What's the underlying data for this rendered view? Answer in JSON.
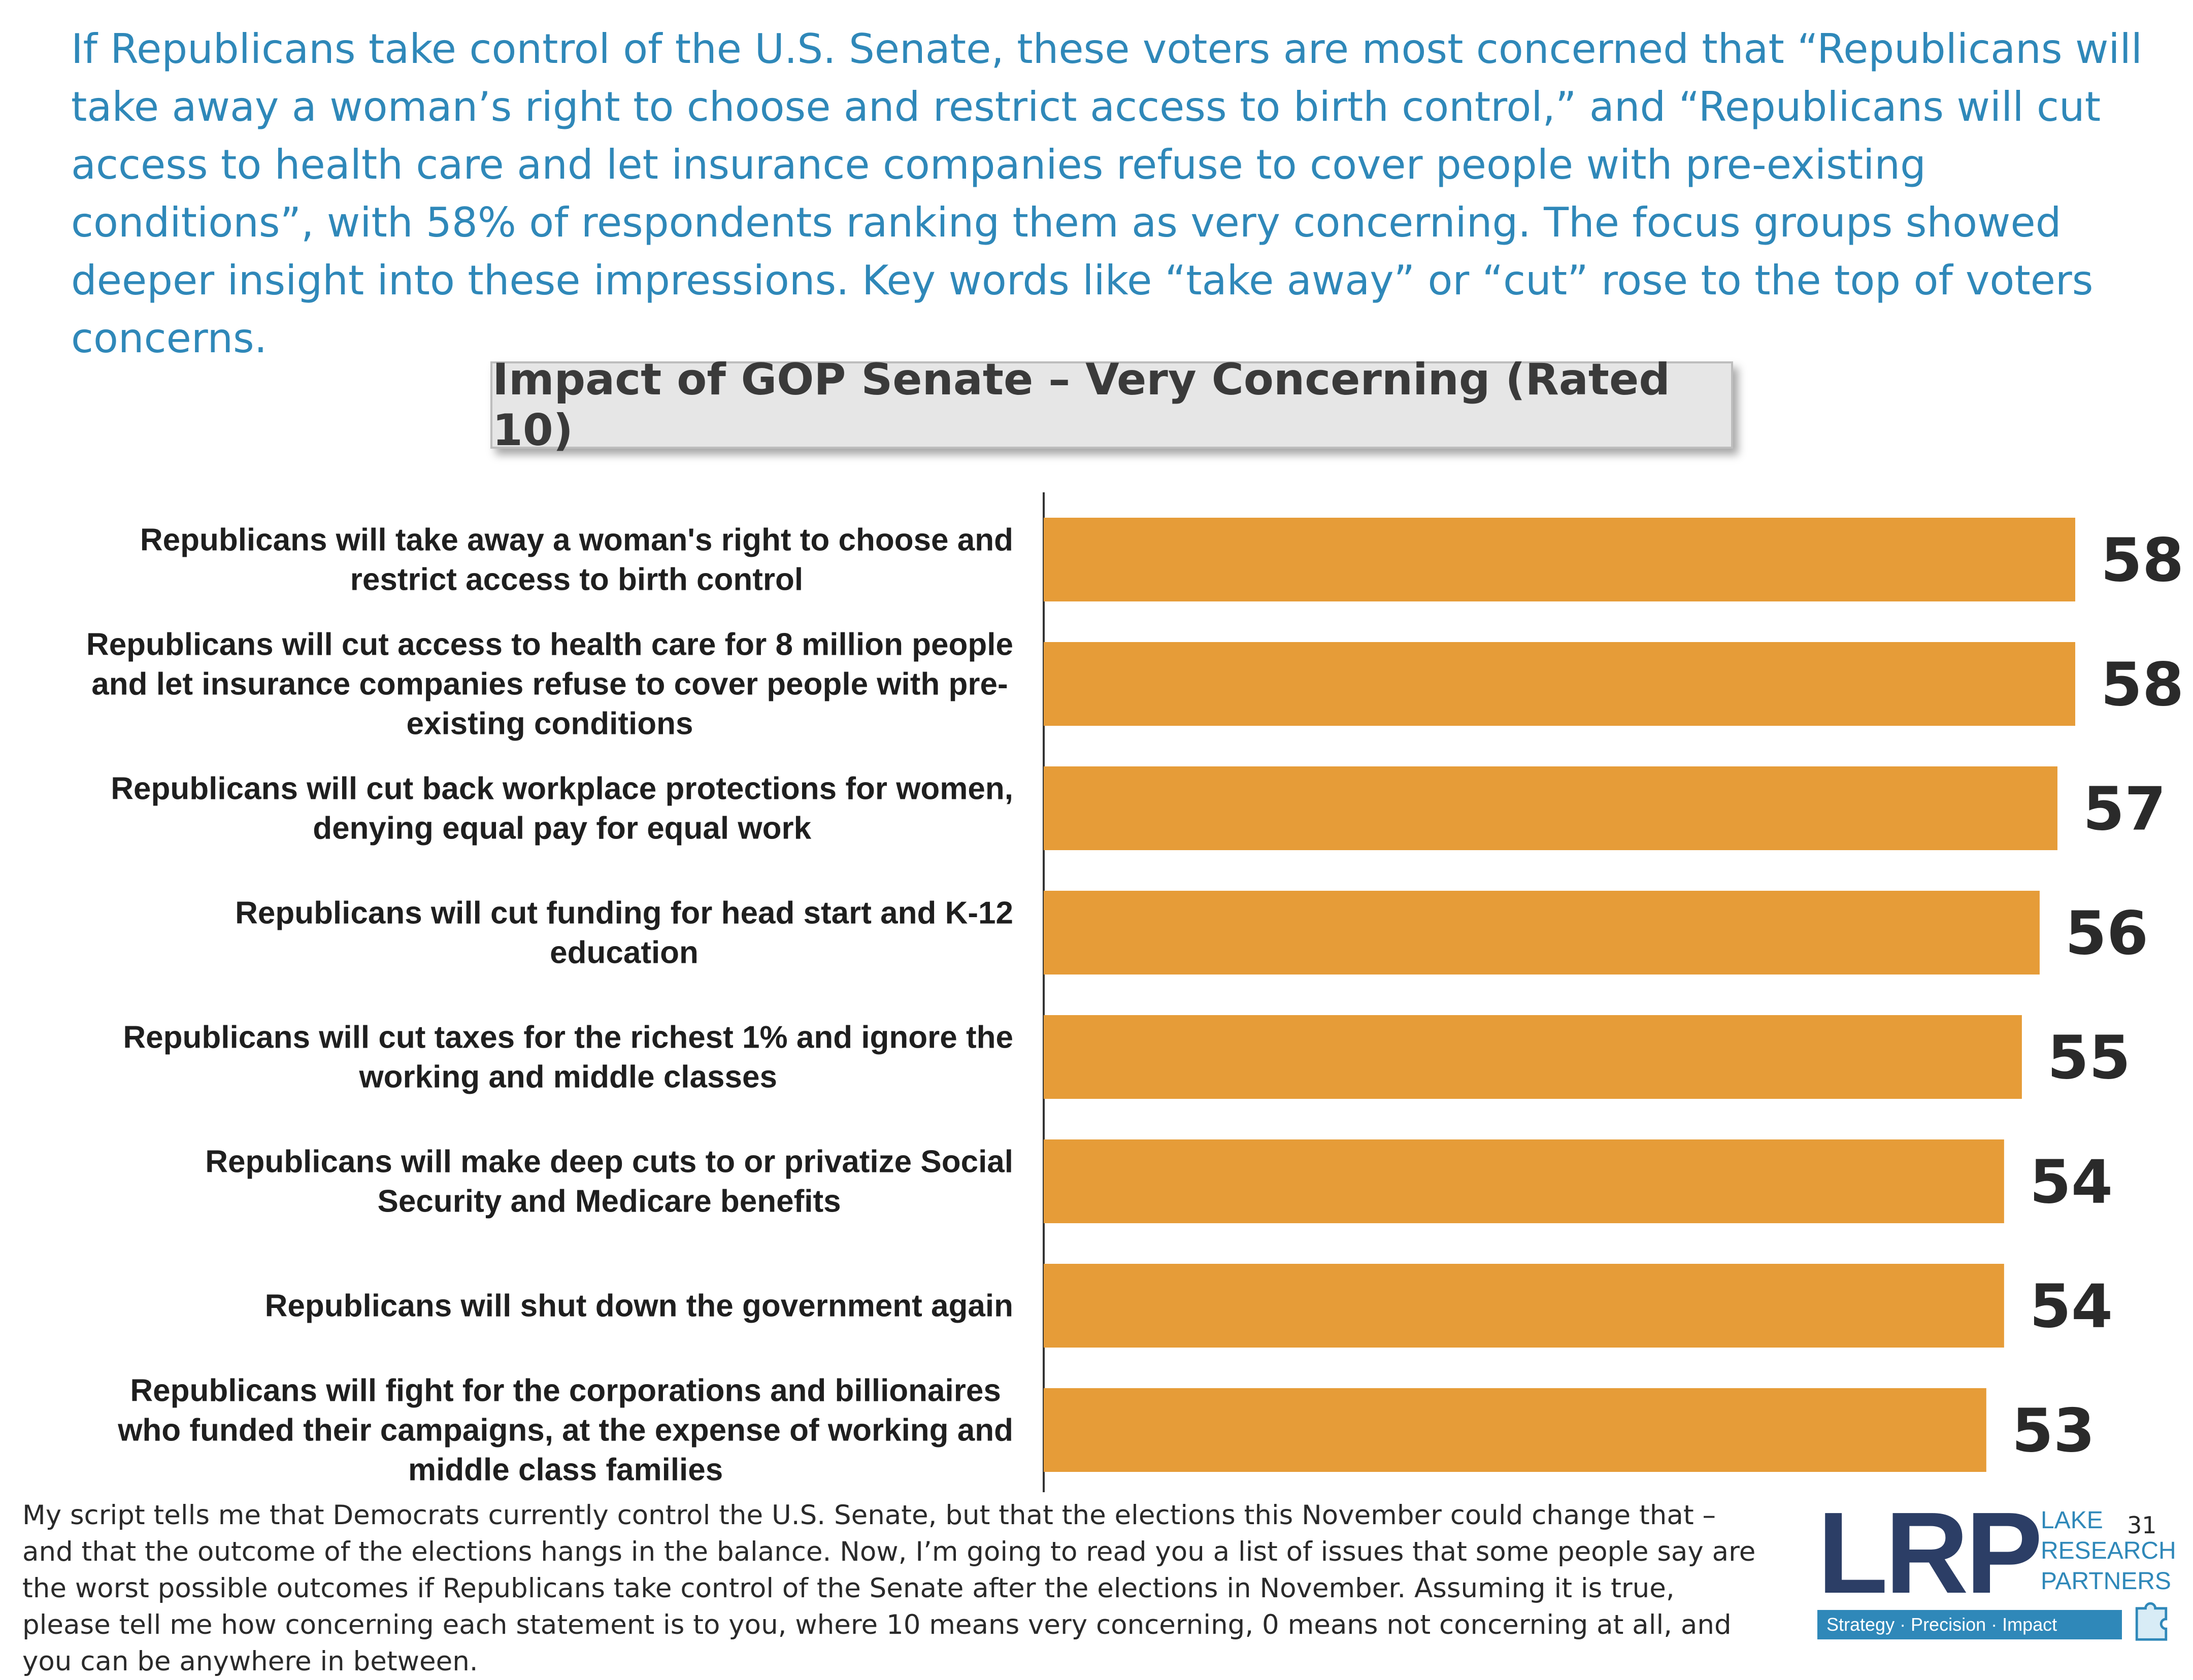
{
  "intro_text": "If Republicans take control of the U.S. Senate, these voters are most concerned that “Republicans will take away a woman’s right to choose and restrict access to birth control,” and “Republicans will cut access to health care and let insurance companies refuse to cover people with pre-existing conditions”, with 58% of respondents ranking them as very concerning. The focus groups showed deeper insight into these impressions. Key words like “take away” or “cut” rose to the top of voters concerns.",
  "chart_data": {
    "type": "bar",
    "orientation": "horizontal",
    "title": "Impact of GOP Senate – Very Concerning (Rated 10)",
    "categories": [
      [
        "Republicans will take away a woman's right to choose and",
        "restrict access to birth control"
      ],
      [
        "Republicans will cut access to health care for 8 million people",
        "and let insurance companies refuse to cover people with pre-",
        "existing conditions"
      ],
      [
        "Republicans will cut back workplace protections for women,",
        "denying equal pay for equal work"
      ],
      [
        "Republicans will cut funding for head start and K-12",
        "education"
      ],
      [
        "Republicans will cut taxes for the richest 1% and ignore the",
        "working and middle classes"
      ],
      [
        "Republicans will make deep cuts to or privatize Social",
        "Security and Medicare benefits"
      ],
      [
        "Republicans will shut down the government again"
      ],
      [
        "Republicans will fight for the corporations and billionaires",
        "who funded their campaigns, at the expense of working and",
        "middle class families"
      ]
    ],
    "values": [
      58,
      58,
      57,
      56,
      55,
      54,
      54,
      53
    ],
    "bar_color": "#e69c38",
    "data_labels": true,
    "gridlines": false
  },
  "footnote": "My script tells me that Democrats currently control the U.S. Senate, but that the elections this November could change that – and that the outcome of the elections hangs in the balance. Now, I’m going to read you a list of issues that some people say are the worst possible outcomes if Republicans take control of the Senate after the elections in November. Assuming it is true, please tell me how concerning each statement is to you, where 10 means very concerning, 0 means not concerning at all, and you can be anywhere in between.",
  "logo": {
    "mark": "LRP",
    "words": [
      "LAKE",
      "RESEARCH",
      "PARTNERS"
    ],
    "tagline": "Strategy · Precision · Impact",
    "icon": "puzzle-piece-icon"
  },
  "page_number": "31",
  "colors": {
    "intro_text": "#2f88b9",
    "logo_navy": "#2c3e66",
    "logo_blue": "#2f88b9"
  }
}
